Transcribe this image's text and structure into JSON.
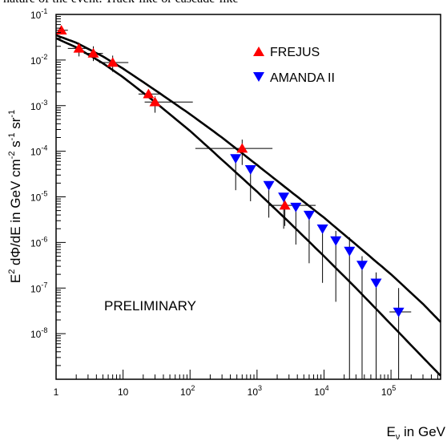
{
  "top_text": "nature of the event. Track-like or cascade-like",
  "chart_data": {
    "type": "scatter",
    "title": "",
    "xlabel": "Eν in GeV",
    "ylabel": "E² dΦ/dE in GeV cm⁻² s⁻¹ sr⁻¹",
    "xscale": "log",
    "yscale": "log",
    "xlim": [
      1,
      550000
    ],
    "ylim": [
      1e-09,
      0.1
    ],
    "annotation": "PRELIMINARY",
    "legend_position": "top-right",
    "x_tick_labels": [
      {
        "value": 1,
        "base": "1",
        "exp": ""
      },
      {
        "value": 10,
        "base": "10",
        "exp": ""
      },
      {
        "value": 100,
        "base": "10",
        "exp": "2"
      },
      {
        "value": 1000,
        "base": "10",
        "exp": "3"
      },
      {
        "value": 10000,
        "base": "10",
        "exp": "4"
      },
      {
        "value": 100000,
        "base": "10",
        "exp": "5"
      }
    ],
    "y_tick_labels": [
      {
        "value": 1e-08,
        "base": "10",
        "exp": "-8"
      },
      {
        "value": 1e-07,
        "base": "10",
        "exp": "-7"
      },
      {
        "value": 1e-06,
        "base": "10",
        "exp": "-6"
      },
      {
        "value": 1e-05,
        "base": "10",
        "exp": "-5"
      },
      {
        "value": 0.0001,
        "base": "10",
        "exp": "-4"
      },
      {
        "value": 0.001,
        "base": "10",
        "exp": "-3"
      },
      {
        "value": 0.01,
        "base": "10",
        "exp": "-2"
      },
      {
        "value": 0.1,
        "base": "10",
        "exp": "-1"
      }
    ],
    "series": [
      {
        "name": "FREJUS",
        "marker": "triangle-up",
        "color": "#ff0000",
        "points": [
          {
            "x": 1.2,
            "y": 0.045,
            "xlo": 1.0,
            "xhi": 1.5,
            "ylo": 0.045,
            "yhi": 0.045
          },
          {
            "x": 2.2,
            "y": 0.018,
            "xlo": 1.5,
            "xhi": 3.0,
            "ylo": 0.012,
            "yhi": 0.024
          },
          {
            "x": 3.6,
            "y": 0.014,
            "xlo": 2.6,
            "xhi": 5.0,
            "ylo": 0.0095,
            "yhi": 0.02
          },
          {
            "x": 7.0,
            "y": 0.0088,
            "xlo": 4.4,
            "xhi": 12.0,
            "ylo": 0.0055,
            "yhi": 0.0125
          },
          {
            "x": 24.0,
            "y": 0.0018,
            "xlo": 17.0,
            "xhi": 38.0,
            "ylo": 0.0018,
            "yhi": 0.0018
          },
          {
            "x": 30.0,
            "y": 0.0012,
            "xlo": 21.0,
            "xhi": 110.0,
            "ylo": 0.0007,
            "yhi": 0.0016
          },
          {
            "x": 600.0,
            "y": 0.000115,
            "xlo": 120.0,
            "xhi": 1700.0,
            "ylo": 5e-05,
            "yhi": 0.00018
          },
          {
            "x": 2600.0,
            "y": 6.5e-06,
            "xlo": 1500.0,
            "xhi": 7500.0,
            "ylo": 2.3e-06,
            "yhi": 1e-05
          }
        ]
      },
      {
        "name": "AMANDA II",
        "marker": "triangle-down",
        "color": "#0000ff",
        "points": [
          {
            "x": 480.0,
            "y": 7e-05,
            "xlo": 480.0,
            "xhi": 480.0,
            "ylo": 1.4e-05,
            "yhi": 7e-05
          },
          {
            "x": 800.0,
            "y": 4e-05,
            "xlo": 800.0,
            "xhi": 800.0,
            "ylo": 8e-06,
            "yhi": 4e-05
          },
          {
            "x": 1500.0,
            "y": 1.8e-05,
            "xlo": 1500.0,
            "xhi": 1500.0,
            "ylo": 3.5e-06,
            "yhi": 1.8e-05
          },
          {
            "x": 2500.0,
            "y": 1e-05,
            "xlo": 2500.0,
            "xhi": 2500.0,
            "ylo": 2e-06,
            "yhi": 1e-05
          },
          {
            "x": 3800.0,
            "y": 6e-06,
            "xlo": 3800.0,
            "xhi": 3800.0,
            "ylo": 9e-07,
            "yhi": 6e-06
          },
          {
            "x": 6000.0,
            "y": 4e-06,
            "xlo": 6000.0,
            "xhi": 6000.0,
            "ylo": 3.5e-07,
            "yhi": 4e-06
          },
          {
            "x": 9500.0,
            "y": 2e-06,
            "xlo": 9500.0,
            "xhi": 9500.0,
            "ylo": 1.3e-07,
            "yhi": 2e-06
          },
          {
            "x": 15000.0,
            "y": 1.1e-06,
            "xlo": 15000.0,
            "xhi": 15000.0,
            "ylo": 5e-08,
            "yhi": 1.8e-06
          },
          {
            "x": 24000.0,
            "y": 6.5e-07,
            "xlo": 24000.0,
            "xhi": 24000.0,
            "ylo": 1e-09,
            "yhi": 1.3e-06
          },
          {
            "x": 37000.0,
            "y": 3.2e-07,
            "xlo": 37000.0,
            "xhi": 37000.0,
            "ylo": 1e-09,
            "yhi": 5e-07
          },
          {
            "x": 60000.0,
            "y": 1.3e-07,
            "xlo": 60000.0,
            "xhi": 60000.0,
            "ylo": 1e-09,
            "yhi": 2.2e-07
          },
          {
            "x": 130000.0,
            "y": 3e-08,
            "xlo": 95000.0,
            "xhi": 200000.0,
            "ylo": 1e-09,
            "yhi": 1e-07
          }
        ]
      }
    ],
    "curves": [
      {
        "name": "upper-model",
        "color": "#000000",
        "x": [
          1,
          2,
          5,
          10,
          30,
          100,
          300,
          1000,
          3000,
          10000,
          30000,
          100000,
          300000,
          550000
        ],
        "y": [
          0.035,
          0.024,
          0.012,
          0.0065,
          0.0022,
          0.00065,
          0.0002,
          5e-05,
          1.4e-05,
          3.5e-06,
          9e-07,
          2e-07,
          4.5e-08,
          1.8e-08
        ]
      },
      {
        "name": "lower-model",
        "color": "#000000",
        "x": [
          1,
          2,
          5,
          10,
          30,
          100,
          300,
          1000,
          3000,
          10000,
          30000,
          100000,
          300000,
          550000
        ],
        "y": [
          0.03,
          0.019,
          0.0085,
          0.0042,
          0.0012,
          0.00028,
          6.5e-05,
          1.3e-05,
          2.8e-06,
          5e-07,
          1e-07,
          1.6e-08,
          3e-09,
          1.2e-09
        ]
      }
    ]
  }
}
